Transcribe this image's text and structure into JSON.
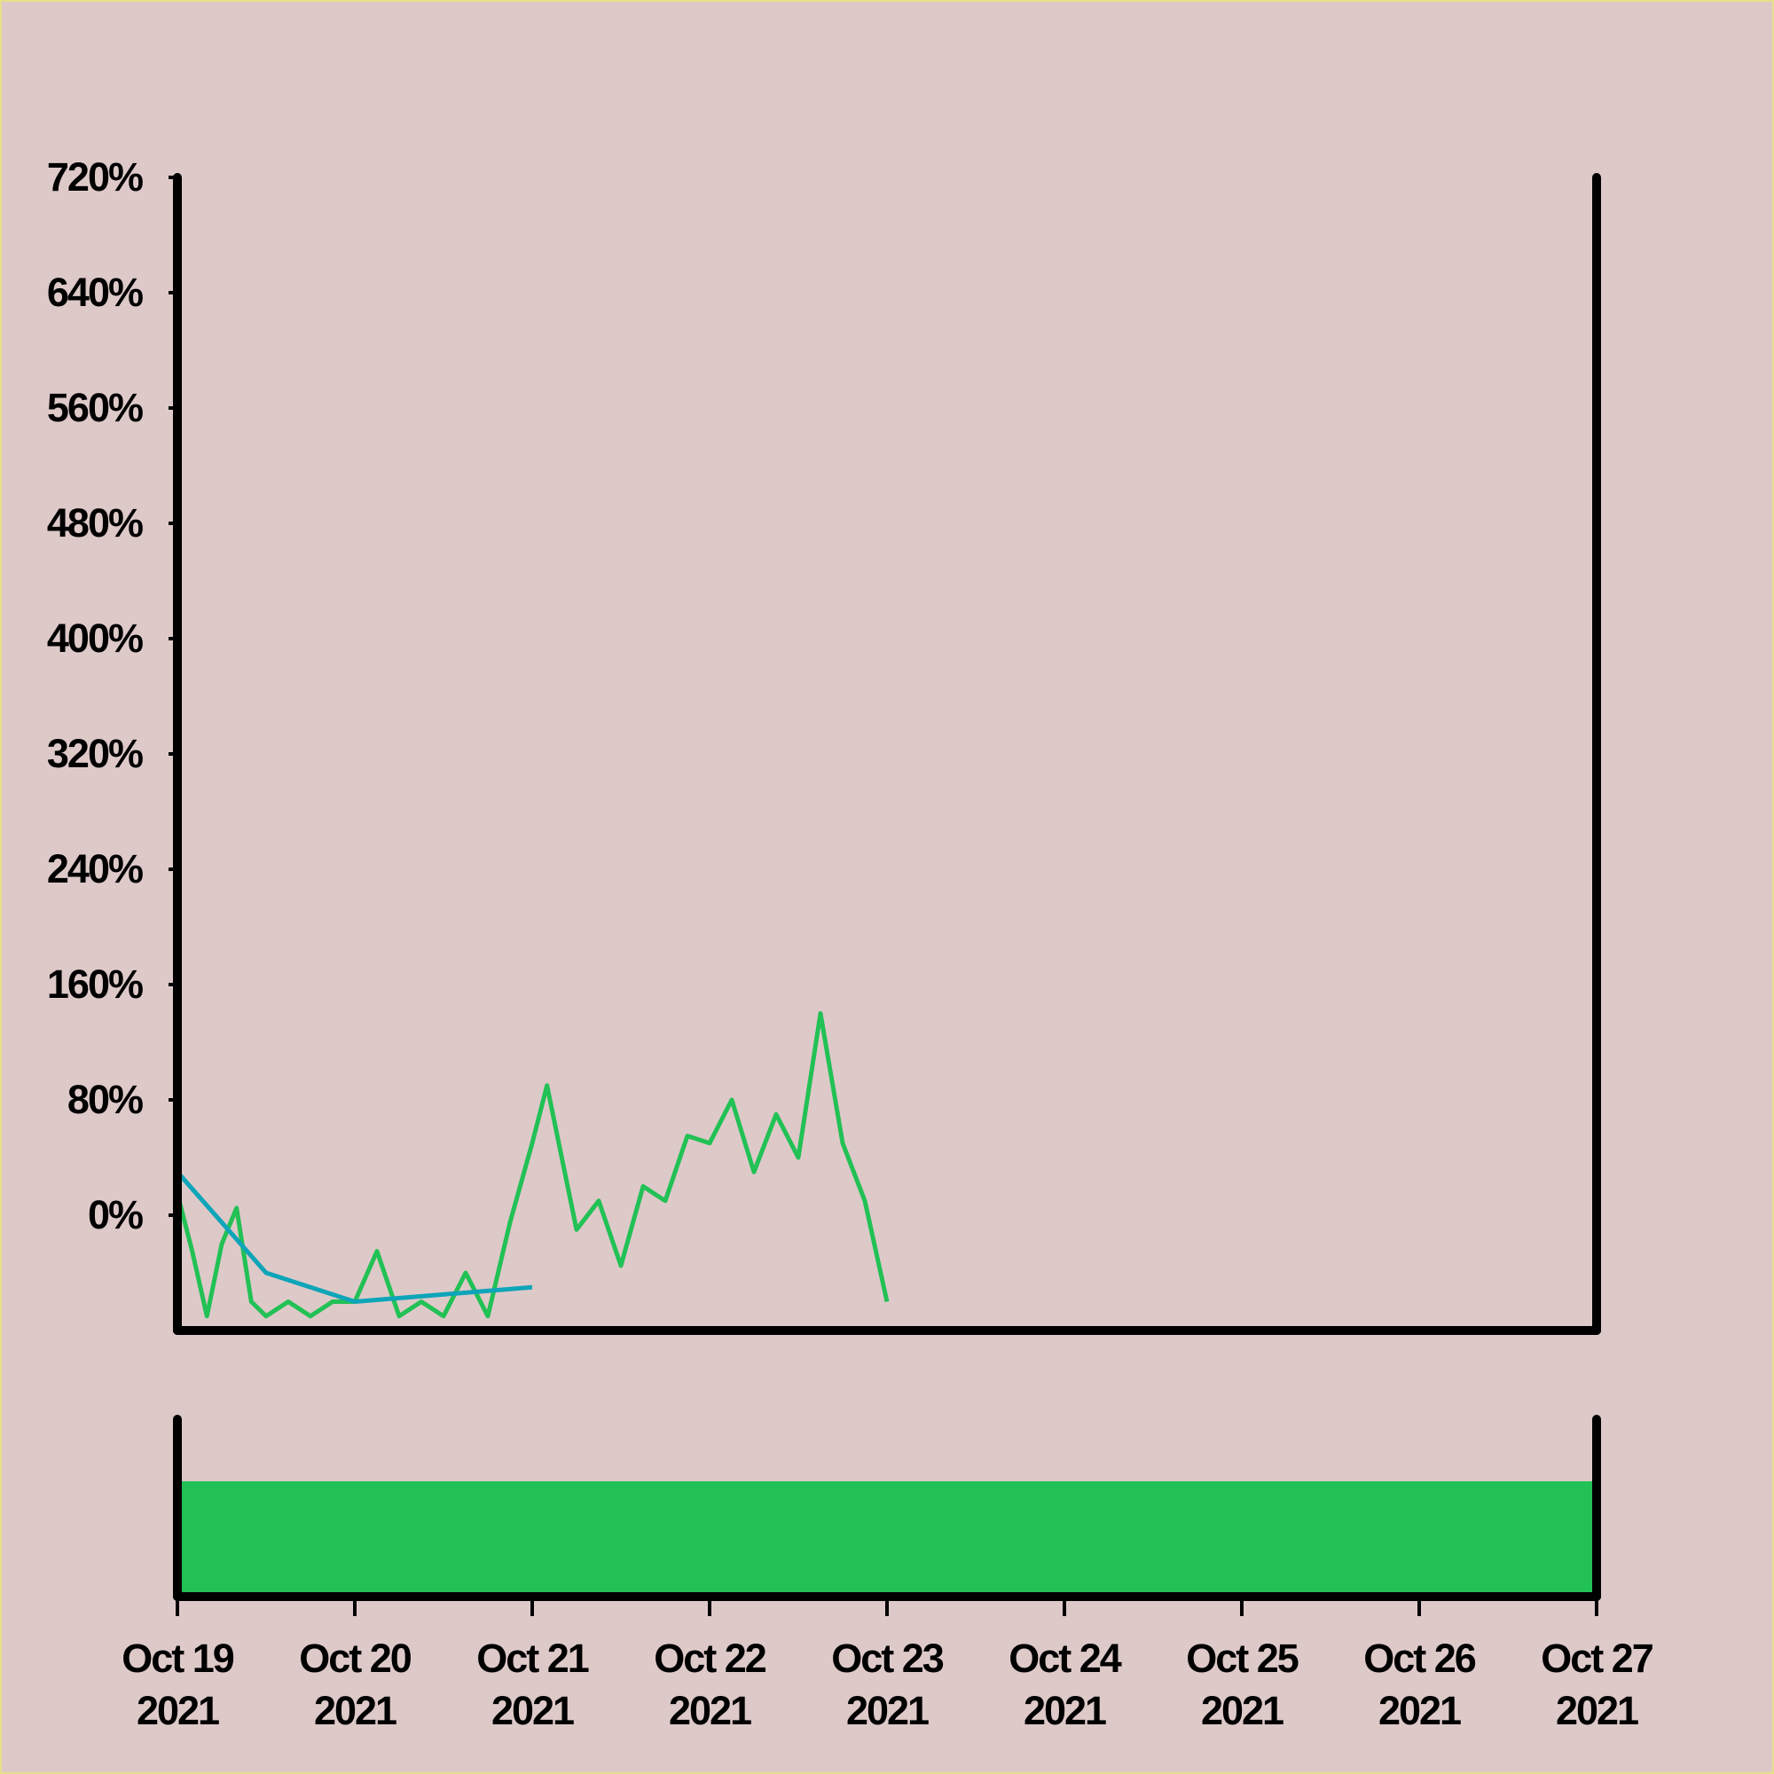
{
  "chart_data": {
    "type": "line",
    "title": "",
    "xlabel": "",
    "ylabel": "",
    "x_range": [
      "2021-10-19",
      "2021-10-27"
    ],
    "ylim": [
      -80,
      720
    ],
    "y_ticks": [
      0,
      80,
      160,
      240,
      320,
      400,
      480,
      560,
      640,
      720
    ],
    "y_tick_labels": [
      "0%",
      "80%",
      "160%",
      "240%",
      "320%",
      "400%",
      "480%",
      "560%",
      "640%",
      "720%"
    ],
    "x_tick_labels": [
      {
        "month_day": "Oct 19",
        "year": "2021"
      },
      {
        "month_day": "Oct 20",
        "year": "2021"
      },
      {
        "month_day": "Oct 21",
        "year": "2021"
      },
      {
        "month_day": "Oct 22",
        "year": "2021"
      },
      {
        "month_day": "Oct 23",
        "year": "2021"
      },
      {
        "month_day": "Oct 24",
        "year": "2021"
      },
      {
        "month_day": "Oct 25",
        "year": "2021"
      },
      {
        "month_day": "Oct 26",
        "year": "2021"
      },
      {
        "month_day": "Oct 27",
        "year": "2021"
      }
    ],
    "grid": false,
    "series": [
      {
        "color": "#22c155",
        "style": "line",
        "points": [
          [
            "2021-10-19 00:00",
            15
          ],
          [
            "2021-10-19 02:00",
            -25
          ],
          [
            "2021-10-19 04:00",
            -70
          ],
          [
            "2021-10-19 06:00",
            -20
          ],
          [
            "2021-10-19 08:00",
            5
          ],
          [
            "2021-10-19 10:00",
            -60
          ],
          [
            "2021-10-19 12:00",
            -70
          ],
          [
            "2021-10-19 15:00",
            -60
          ],
          [
            "2021-10-19 18:00",
            -70
          ],
          [
            "2021-10-19 21:00",
            -60
          ],
          [
            "2021-10-20 00:00",
            -60
          ],
          [
            "2021-10-20 03:00",
            -25
          ],
          [
            "2021-10-20 06:00",
            -70
          ],
          [
            "2021-10-20 09:00",
            -60
          ],
          [
            "2021-10-20 12:00",
            -70
          ],
          [
            "2021-10-20 15:00",
            -40
          ],
          [
            "2021-10-20 18:00",
            -70
          ],
          [
            "2021-10-20 21:00",
            -5
          ],
          [
            "2021-10-21 00:00",
            50
          ],
          [
            "2021-10-21 02:00",
            90
          ],
          [
            "2021-10-21 04:00",
            40
          ],
          [
            "2021-10-21 06:00",
            -10
          ],
          [
            "2021-10-21 09:00",
            10
          ],
          [
            "2021-10-21 12:00",
            -35
          ],
          [
            "2021-10-21 15:00",
            20
          ],
          [
            "2021-10-21 18:00",
            10
          ],
          [
            "2021-10-21 21:00",
            55
          ],
          [
            "2021-10-22 00:00",
            50
          ],
          [
            "2021-10-22 03:00",
            80
          ],
          [
            "2021-10-22 06:00",
            30
          ],
          [
            "2021-10-22 09:00",
            70
          ],
          [
            "2021-10-22 12:00",
            40
          ],
          [
            "2021-10-22 15:00",
            140
          ],
          [
            "2021-10-22 18:00",
            50
          ],
          [
            "2021-10-22 21:00",
            10
          ],
          [
            "2021-10-23 00:00",
            -60
          ]
        ]
      },
      {
        "color": "#0ea5b8",
        "style": "line",
        "points": [
          [
            "2021-10-19 00:00",
            30
          ],
          [
            "2021-10-19 12:00",
            -40
          ],
          [
            "2021-10-20 00:00",
            -60
          ],
          [
            "2021-10-21 00:00",
            -50
          ]
        ]
      },
      {
        "color": "#22c155",
        "style": "bar",
        "panel": "volume"
      }
    ]
  }
}
